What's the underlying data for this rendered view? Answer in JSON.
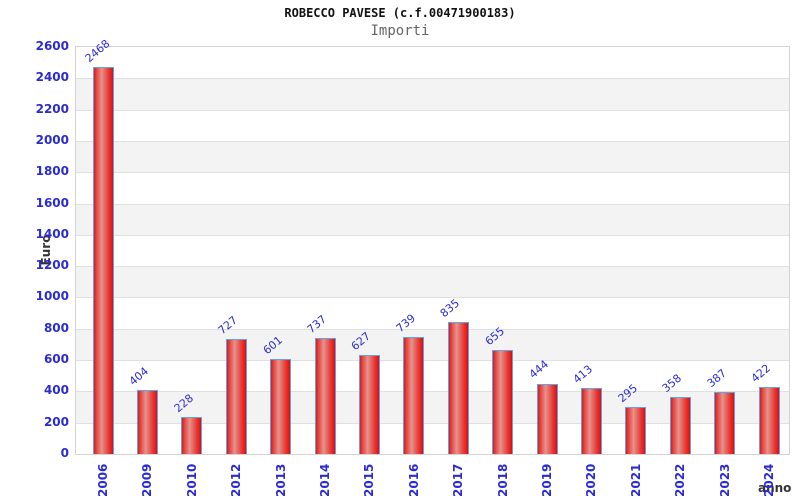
{
  "header": {
    "title": "ROBECCO PAVESE (c.f.00471900183)",
    "subtitle": "Importi"
  },
  "chart_data": {
    "type": "bar",
    "title": "ROBECCO PAVESE (c.f.00471900183)",
    "subtitle": "Importi",
    "xlabel": "anno",
    "ylabel": "Euro",
    "categories": [
      "2006",
      "2009",
      "2010",
      "2012",
      "2013",
      "2014",
      "2015",
      "2016",
      "2017",
      "2018",
      "2019",
      "2020",
      "2021",
      "2022",
      "2023",
      "2024"
    ],
    "values": [
      2468,
      404,
      228,
      727,
      601,
      737,
      627,
      739,
      835,
      655,
      444,
      413,
      295,
      358,
      387,
      422
    ],
    "ylim": [
      0,
      2600
    ],
    "ytick_step": 200,
    "grid": "horizontal-bands-alternating",
    "legend": "none",
    "colors": {
      "bar_fill": "#e41b23",
      "bar_fill_highlight": "#e9918b",
      "bar_border": "#63a2e4",
      "tick_label": "#2b2bd2",
      "value_label": "#2b2bd2",
      "axis_label": "#333333",
      "band_gray": "#f3f3f3",
      "gridline": "#e0e0e0",
      "title": "#111111",
      "subtitle": "#666666"
    }
  }
}
